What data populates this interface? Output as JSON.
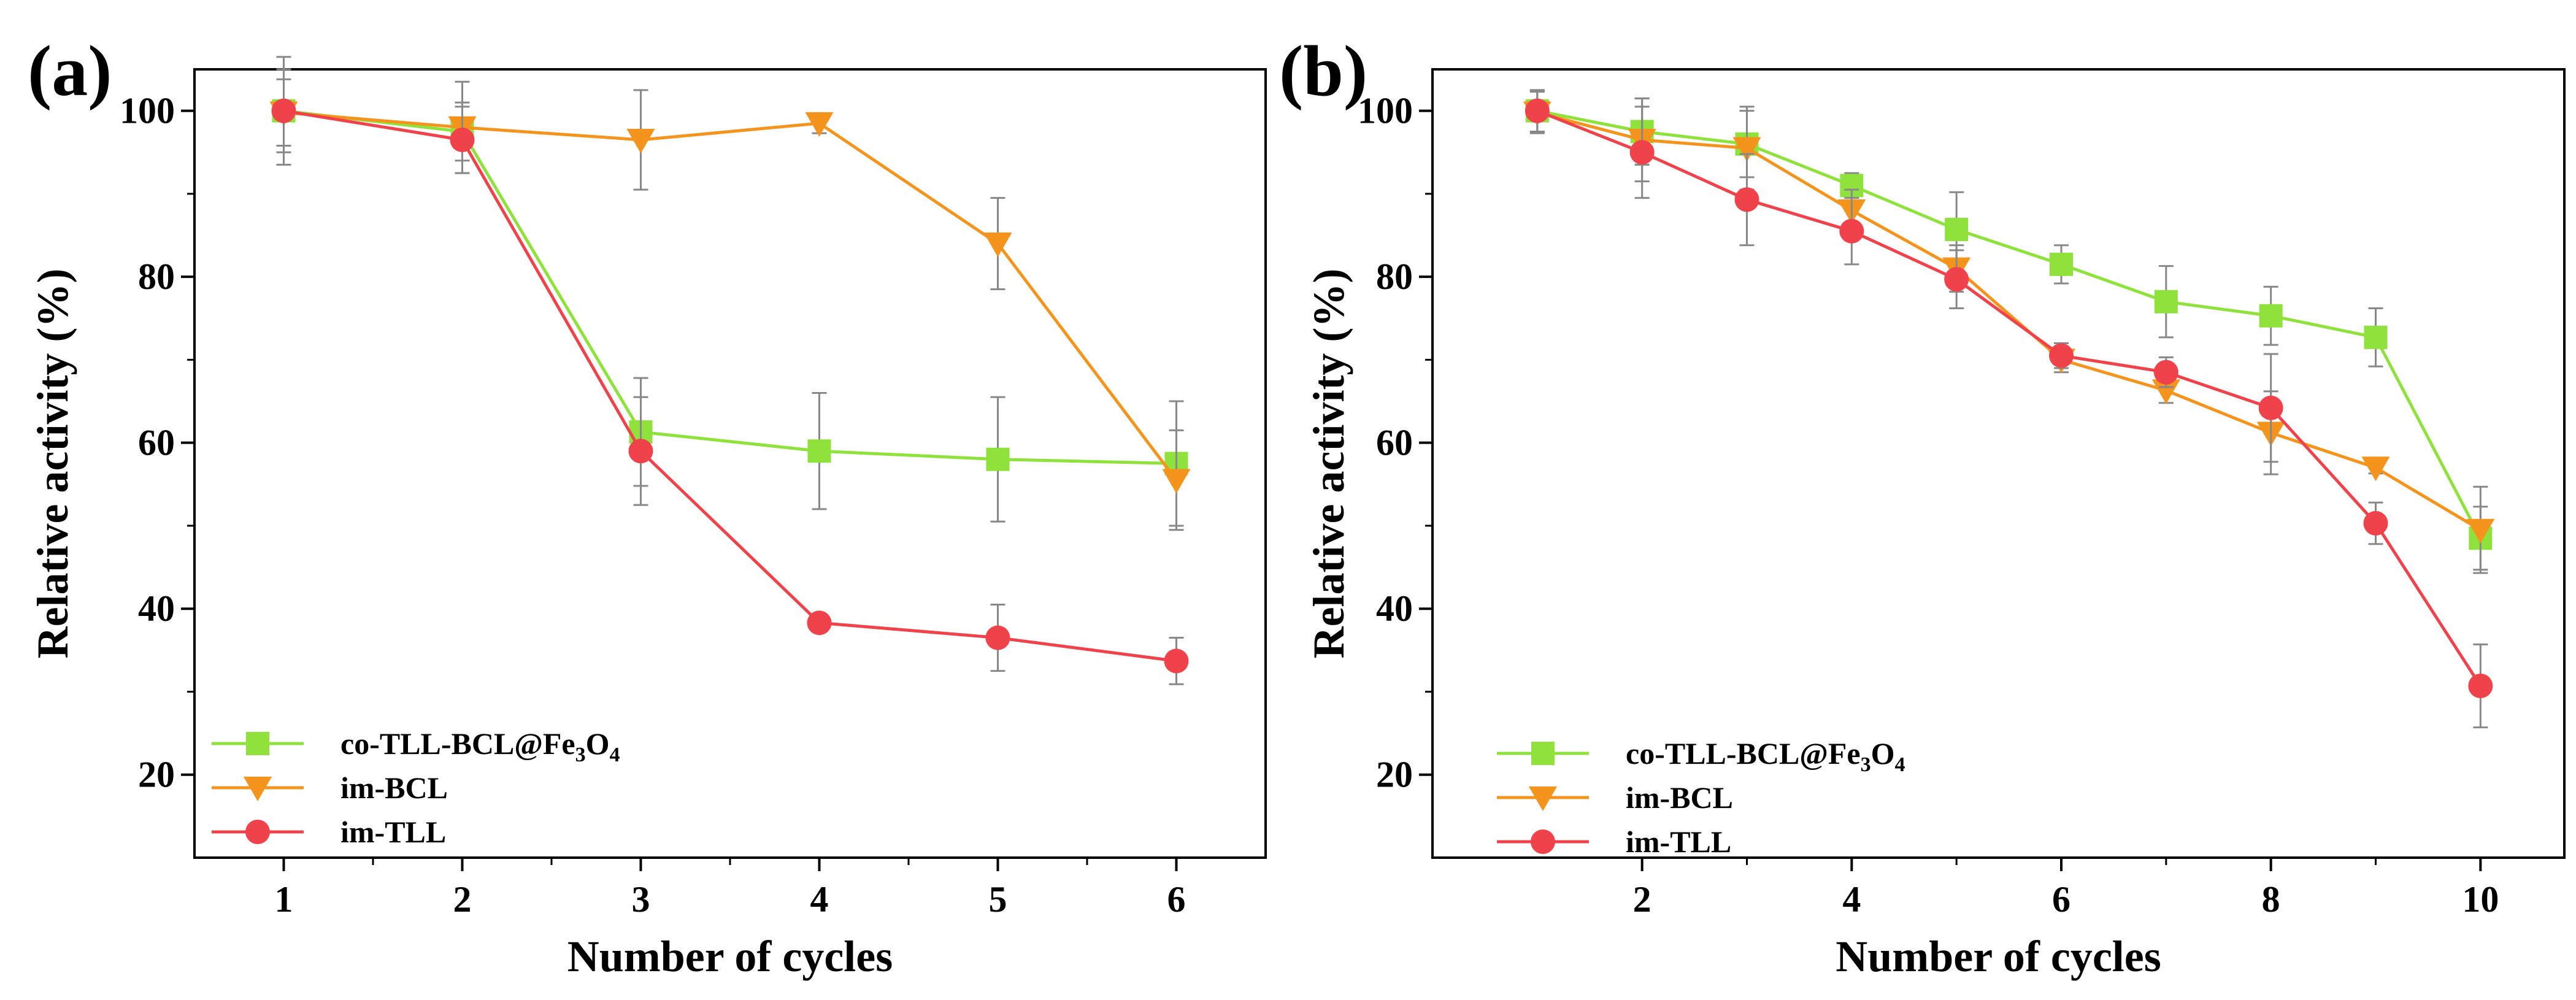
{
  "colors": {
    "green": "#8FE23C",
    "orange": "#F5941D",
    "red": "#F0424A",
    "axis": "#000000",
    "errorbar": "#888888"
  },
  "chart_data": [
    {
      "type": "line",
      "panel_label": "(a)",
      "xlabel": "Number of cycles",
      "ylabel": "Relative activity (%)",
      "xlim": [
        0.5,
        6.5
      ],
      "ylim": [
        10,
        105
      ],
      "xticks": [
        1,
        2,
        3,
        4,
        5,
        6
      ],
      "yticks": [
        20,
        40,
        60,
        80,
        100
      ],
      "legend_position": "bottom-left",
      "series": [
        {
          "name": "co-TLL-BCL@Fe3O4",
          "label_main": "co-TLL-BCL@Fe",
          "label_sub1": "3",
          "label_mid": "O",
          "label_sub2": "4",
          "color": "#8FE23C",
          "marker": "square",
          "x": [
            1,
            2,
            3,
            4,
            5,
            6
          ],
          "y": [
            100,
            97.5,
            61.3,
            59,
            58,
            57.5
          ],
          "err": [
            5,
            3.5,
            6.5,
            7,
            7.5,
            7.5
          ]
        },
        {
          "name": "im-BCL",
          "color": "#F5941D",
          "marker": "triangle-down",
          "x": [
            1,
            2,
            3,
            4,
            5,
            6
          ],
          "y": [
            99.8,
            98,
            96.5,
            98.5,
            84,
            55.5
          ],
          "err": [
            4,
            5.5,
            6,
            1.2,
            5.5,
            6
          ]
        },
        {
          "name": "im-TLL",
          "color": "#F0424A",
          "marker": "circle",
          "x": [
            1,
            2,
            3,
            4,
            5,
            6
          ],
          "y": [
            100,
            96.5,
            59,
            38.3,
            36.5,
            33.7
          ],
          "err": [
            6.5,
            4,
            6.5,
            0,
            4,
            2.8
          ]
        }
      ]
    },
    {
      "type": "line",
      "panel_label": "(b)",
      "xlabel": "Number of cycles",
      "ylabel": "Relative activity (%)",
      "xlim": [
        0,
        10.8
      ],
      "ylim": [
        10,
        105
      ],
      "xticks": [
        2,
        4,
        6,
        8,
        10
      ],
      "yticks": [
        20,
        40,
        60,
        80,
        100
      ],
      "legend_position": "bottom-left",
      "series": [
        {
          "name": "co-TLL-BCL@Fe3O4",
          "label_main": "co-TLL-BCL@Fe",
          "label_sub1": "3",
          "label_mid": "O",
          "label_sub2": "4",
          "color": "#8FE23C",
          "marker": "square",
          "x": [
            1,
            2,
            3,
            4,
            5,
            6,
            7,
            8,
            9,
            10
          ],
          "y": [
            100,
            97.5,
            96,
            91,
            85.7,
            81.5,
            77,
            75.3,
            72.7,
            48.5
          ],
          "err": [
            2.5,
            4,
            4,
            1.5,
            4.5,
            2.3,
            4.3,
            3.5,
            3.5,
            3.8
          ]
        },
        {
          "name": "im-BCL",
          "color": "#F5941D",
          "marker": "triangle-down",
          "x": [
            1,
            2,
            3,
            4,
            5,
            6,
            7,
            8,
            9,
            10
          ],
          "y": [
            99.8,
            96.5,
            95.5,
            88,
            81,
            70,
            66.3,
            61.2,
            57,
            49.5
          ],
          "err": [
            2.5,
            5,
            5,
            2.5,
            2.8,
            1.5,
            1.5,
            5,
            0.7,
            5.2
          ]
        },
        {
          "name": "im-TLL",
          "color": "#F0424A",
          "marker": "circle",
          "x": [
            1,
            2,
            3,
            4,
            5,
            6,
            7,
            8,
            9,
            10
          ],
          "y": [
            100,
            95,
            89.3,
            85.5,
            79.7,
            70.5,
            68.5,
            64.2,
            50.3,
            30.7
          ],
          "err": [
            2.5,
            5.5,
            5.5,
            4,
            3.5,
            1.5,
            1.8,
            6.5,
            2.5,
            5
          ]
        }
      ]
    }
  ]
}
